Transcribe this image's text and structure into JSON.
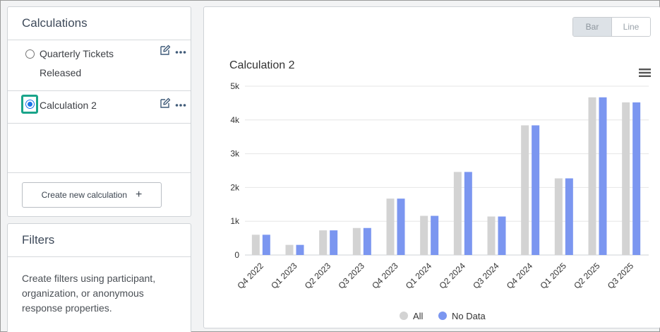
{
  "sidebar": {
    "calculations_title": "Calculations",
    "items": [
      {
        "label": "Quarterly Tickets Released",
        "selected": false
      },
      {
        "label": "Calculation 2",
        "selected": true
      }
    ],
    "create_label": "Create new calculation",
    "create_icon": "+",
    "filters_title": "Filters",
    "filters_text": "Create filters using participant, organization, or anonymous response properties."
  },
  "chart_toggle": {
    "bar_label": "Bar",
    "line_label": "Line",
    "active": "Bar"
  },
  "chart_data": {
    "type": "bar",
    "title": "Calculation 2",
    "categories": [
      "Q4 2022",
      "Q1 2023",
      "Q2 2023",
      "Q3 2023",
      "Q4 2023",
      "Q1 2024",
      "Q2 2024",
      "Q3 2024",
      "Q4 2024",
      "Q1 2025",
      "Q2 2025",
      "Q3 2025"
    ],
    "series": [
      {
        "name": "All",
        "color": "#d3d3d3",
        "values": [
          600,
          300,
          730,
          800,
          1670,
          1160,
          2460,
          1140,
          3840,
          2270,
          4670,
          4520
        ]
      },
      {
        "name": "No Data",
        "color": "#7b96f0",
        "values": [
          600,
          300,
          730,
          800,
          1670,
          1160,
          2460,
          1140,
          3840,
          2270,
          4670,
          4520
        ]
      }
    ],
    "ylim": [
      0,
      5000
    ],
    "yticks": [
      "0",
      "1k",
      "2k",
      "3k",
      "4k",
      "5k"
    ],
    "grid": true,
    "legend": "bottom-center"
  }
}
